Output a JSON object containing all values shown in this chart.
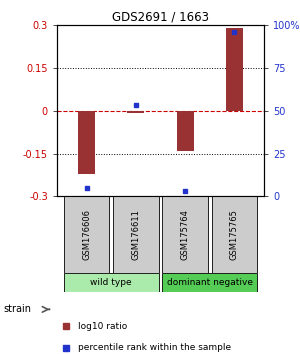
{
  "title": "GDS2691 / 1663",
  "samples": [
    "GSM176606",
    "GSM176611",
    "GSM175764",
    "GSM175765"
  ],
  "log10_ratios": [
    -0.22,
    -0.01,
    -0.14,
    0.29
  ],
  "percentile_ranks": [
    5,
    53,
    3,
    96
  ],
  "ylim_left": [
    -0.3,
    0.3
  ],
  "ylim_right": [
    0,
    100
  ],
  "yticks_left": [
    -0.3,
    -0.15,
    0,
    0.15,
    0.3
  ],
  "yticks_right": [
    0,
    25,
    50,
    75,
    100
  ],
  "ytick_labels_left": [
    "-0.3",
    "-0.15",
    "0",
    "0.15",
    "0.3"
  ],
  "ytick_labels_right": [
    "0",
    "25",
    "50",
    "75",
    "100%"
  ],
  "groups": [
    {
      "label": "wild type",
      "samples": [
        0,
        1
      ],
      "color": "#aaeaaa"
    },
    {
      "label": "dominant negative",
      "samples": [
        2,
        3
      ],
      "color": "#55cc55"
    }
  ],
  "bar_color": "#993333",
  "dot_color": "#2233cc",
  "bar_width": 0.35,
  "strain_label": "strain",
  "legend_log10": "log10 ratio",
  "legend_pct": "percentile rank within the sample",
  "background_color": "#ffffff",
  "zero_line_color": "#cc0000",
  "sample_box_color": "#cccccc",
  "dotted_line_color": "#555555"
}
